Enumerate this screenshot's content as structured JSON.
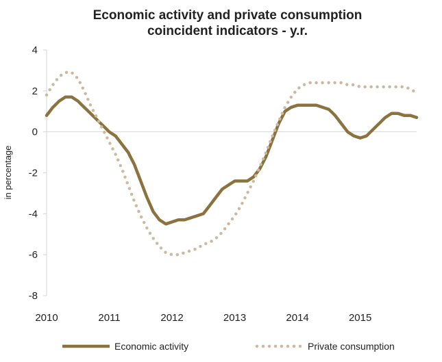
{
  "chart_data": {
    "type": "line",
    "title_lines": [
      "Economic activity and private consumption",
      "coincident indicators - y.r."
    ],
    "xlabel": "",
    "ylabel": "in percentage",
    "ylim": [
      -8,
      4
    ],
    "yticks": [
      4,
      2,
      0,
      -2,
      -4,
      -6,
      -8
    ],
    "xlim": [
      2010,
      2015.9
    ],
    "xticks": [
      2010,
      2011,
      2012,
      2013,
      2014,
      2015
    ],
    "grid": false,
    "legend_position": "bottom",
    "series": [
      {
        "name": "Economic activity",
        "color": "#8b7340",
        "style": "solid",
        "points": [
          [
            2010.0,
            0.8
          ],
          [
            2010.1,
            1.2
          ],
          [
            2010.2,
            1.5
          ],
          [
            2010.3,
            1.7
          ],
          [
            2010.4,
            1.7
          ],
          [
            2010.5,
            1.5
          ],
          [
            2010.6,
            1.2
          ],
          [
            2010.7,
            0.9
          ],
          [
            2010.8,
            0.6
          ],
          [
            2010.9,
            0.3
          ],
          [
            2011.0,
            0.0
          ],
          [
            2011.1,
            -0.2
          ],
          [
            2011.2,
            -0.6
          ],
          [
            2011.3,
            -1.0
          ],
          [
            2011.4,
            -1.6
          ],
          [
            2011.5,
            -2.4
          ],
          [
            2011.6,
            -3.2
          ],
          [
            2011.7,
            -3.9
          ],
          [
            2011.8,
            -4.3
          ],
          [
            2011.9,
            -4.5
          ],
          [
            2012.0,
            -4.4
          ],
          [
            2012.1,
            -4.3
          ],
          [
            2012.2,
            -4.3
          ],
          [
            2012.3,
            -4.2
          ],
          [
            2012.4,
            -4.1
          ],
          [
            2012.5,
            -4.0
          ],
          [
            2012.6,
            -3.6
          ],
          [
            2012.7,
            -3.2
          ],
          [
            2012.8,
            -2.8
          ],
          [
            2012.9,
            -2.6
          ],
          [
            2013.0,
            -2.4
          ],
          [
            2013.1,
            -2.4
          ],
          [
            2013.2,
            -2.4
          ],
          [
            2013.3,
            -2.2
          ],
          [
            2013.4,
            -1.8
          ],
          [
            2013.5,
            -1.2
          ],
          [
            2013.6,
            -0.4
          ],
          [
            2013.7,
            0.4
          ],
          [
            2013.8,
            1.0
          ],
          [
            2013.9,
            1.2
          ],
          [
            2014.0,
            1.3
          ],
          [
            2014.1,
            1.3
          ],
          [
            2014.2,
            1.3
          ],
          [
            2014.3,
            1.3
          ],
          [
            2014.4,
            1.2
          ],
          [
            2014.5,
            1.1
          ],
          [
            2014.6,
            0.8
          ],
          [
            2014.7,
            0.4
          ],
          [
            2014.8,
            0.0
          ],
          [
            2014.9,
            -0.2
          ],
          [
            2015.0,
            -0.3
          ],
          [
            2015.1,
            -0.2
          ],
          [
            2015.2,
            0.1
          ],
          [
            2015.3,
            0.4
          ],
          [
            2015.4,
            0.7
          ],
          [
            2015.5,
            0.9
          ],
          [
            2015.6,
            0.9
          ],
          [
            2015.7,
            0.8
          ],
          [
            2015.8,
            0.8
          ],
          [
            2015.9,
            0.7
          ]
        ]
      },
      {
        "name": "Private consumption",
        "color": "#cdb9a0",
        "style": "dotted",
        "points": [
          [
            2010.0,
            1.8
          ],
          [
            2010.1,
            2.3
          ],
          [
            2010.2,
            2.7
          ],
          [
            2010.3,
            2.9
          ],
          [
            2010.4,
            2.9
          ],
          [
            2010.5,
            2.6
          ],
          [
            2010.6,
            2.0
          ],
          [
            2010.7,
            1.3
          ],
          [
            2010.8,
            0.7
          ],
          [
            2010.9,
            0.1
          ],
          [
            2011.0,
            -0.5
          ],
          [
            2011.1,
            -1.1
          ],
          [
            2011.2,
            -1.8
          ],
          [
            2011.3,
            -2.6
          ],
          [
            2011.4,
            -3.4
          ],
          [
            2011.5,
            -4.1
          ],
          [
            2011.6,
            -4.7
          ],
          [
            2011.7,
            -5.2
          ],
          [
            2011.8,
            -5.6
          ],
          [
            2011.9,
            -5.9
          ],
          [
            2012.0,
            -6.0
          ],
          [
            2012.1,
            -6.0
          ],
          [
            2012.2,
            -5.9
          ],
          [
            2012.3,
            -5.8
          ],
          [
            2012.4,
            -5.7
          ],
          [
            2012.5,
            -5.5
          ],
          [
            2012.6,
            -5.4
          ],
          [
            2012.7,
            -5.2
          ],
          [
            2012.8,
            -4.9
          ],
          [
            2012.9,
            -4.5
          ],
          [
            2013.0,
            -4.1
          ],
          [
            2013.1,
            -3.6
          ],
          [
            2013.2,
            -3.0
          ],
          [
            2013.3,
            -2.4
          ],
          [
            2013.4,
            -1.7
          ],
          [
            2013.5,
            -1.0
          ],
          [
            2013.6,
            -0.2
          ],
          [
            2013.7,
            0.5
          ],
          [
            2013.8,
            1.2
          ],
          [
            2013.9,
            1.7
          ],
          [
            2014.0,
            2.1
          ],
          [
            2014.1,
            2.3
          ],
          [
            2014.2,
            2.4
          ],
          [
            2014.3,
            2.4
          ],
          [
            2014.4,
            2.4
          ],
          [
            2014.5,
            2.4
          ],
          [
            2014.6,
            2.4
          ],
          [
            2014.7,
            2.4
          ],
          [
            2014.8,
            2.3
          ],
          [
            2014.9,
            2.3
          ],
          [
            2015.0,
            2.2
          ],
          [
            2015.1,
            2.2
          ],
          [
            2015.2,
            2.2
          ],
          [
            2015.3,
            2.2
          ],
          [
            2015.4,
            2.2
          ],
          [
            2015.5,
            2.2
          ],
          [
            2015.6,
            2.2
          ],
          [
            2015.7,
            2.2
          ],
          [
            2015.8,
            2.1
          ],
          [
            2015.9,
            1.9
          ]
        ]
      }
    ]
  }
}
